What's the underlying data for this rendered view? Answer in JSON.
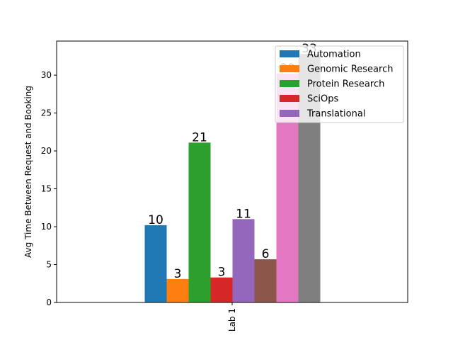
{
  "chart_data": {
    "type": "bar",
    "categories": [
      "Lab 1"
    ],
    "ylabel": "Avg Time Between Request and Booking",
    "xlabel": "",
    "ylim": [
      0,
      34.5
    ],
    "yticks": [
      0,
      5,
      10,
      15,
      20,
      25,
      30
    ],
    "legend_position": "top-right",
    "series": [
      {
        "name": "Automation",
        "value": 10.2,
        "label": "10",
        "color": "#1f77b4"
      },
      {
        "name": "Genomic Research",
        "value": 3.1,
        "label": "3",
        "color": "#ff7f0e"
      },
      {
        "name": "Protein Research",
        "value": 21.1,
        "label": "21",
        "color": "#2ca02c"
      },
      {
        "name": "SciOps",
        "value": 3.3,
        "label": "3",
        "color": "#d62728"
      },
      {
        "name": "Translational",
        "value": 11.0,
        "label": "11",
        "color": "#9467bd"
      },
      {
        "name": "",
        "value": 5.7,
        "label": "6",
        "color": "#8c564b"
      },
      {
        "name": "",
        "value": 30.2,
        "label": "30",
        "color": "#e377c2"
      },
      {
        "name": "",
        "value": 32.8,
        "label": "33",
        "color": "#7f7f7f"
      }
    ]
  }
}
